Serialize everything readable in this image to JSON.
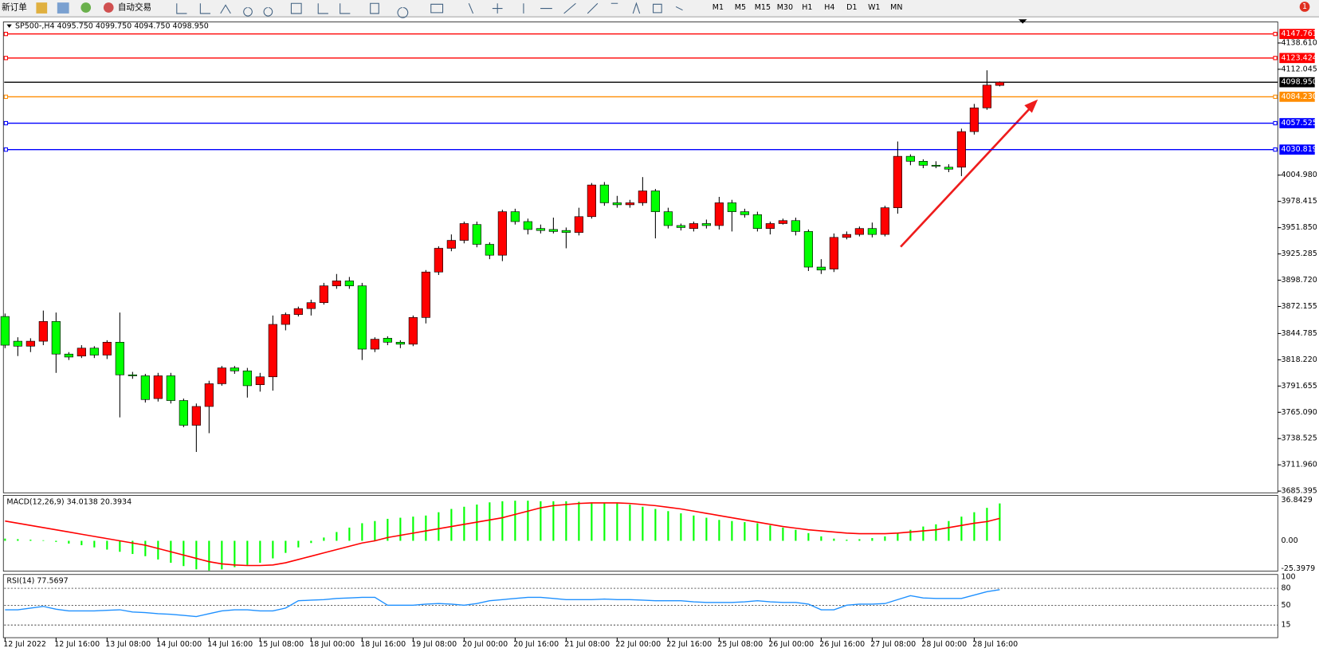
{
  "toolbar": {
    "new_order": "新订单",
    "auto_trading": "自动交易",
    "periods": [
      "M1",
      "M5",
      "M15",
      "M30",
      "H1",
      "H4",
      "D1",
      "W1",
      "MN"
    ],
    "notifications": "1"
  },
  "chart_data": [
    {
      "type": "candlestick",
      "title": "SP500-,H4  4095.750 4099.750 4094.750 4098.950",
      "categories": [
        "12 Jul 2022",
        null,
        null,
        null,
        "12 Jul 16:00",
        null,
        null,
        null,
        "13 Jul 08:00",
        null,
        null,
        null,
        "14 Jul 00:00",
        null,
        null,
        null,
        "14 Jul 16:00",
        null,
        null,
        null,
        "15 Jul 08:00",
        null,
        null,
        null,
        "18 Jul 00:00",
        null,
        null,
        null,
        "18 Jul 16:00",
        null,
        null,
        null,
        "19 Jul 08:00",
        null,
        null,
        null,
        "20 Jul 00:00",
        null,
        null,
        null,
        "20 Jul 16:00",
        null,
        null,
        null,
        "21 Jul 08:00",
        null,
        null,
        null,
        "22 Jul 00:00",
        null,
        null,
        null,
        "22 Jul 16:00",
        null,
        null,
        null,
        "25 Jul 08:00",
        null,
        null,
        null,
        "26 Jul 00:00",
        null,
        null,
        null,
        "26 Jul 16:00",
        null,
        null,
        null,
        "27 Jul 08:00",
        null,
        null,
        null,
        "28 Jul 00:00",
        null,
        null,
        null,
        "28 Jul 16:00",
        null,
        null
      ],
      "open": [
        3862,
        3837,
        3832,
        3837,
        3857,
        3824,
        3822,
        3830,
        3823,
        3836,
        3803,
        3802,
        3779,
        3802,
        3777,
        3752,
        3771,
        3794,
        3810,
        3807,
        3793,
        3801,
        3854,
        3864,
        3870,
        3876,
        3893,
        3898,
        3893,
        3829,
        3840,
        3836,
        3834,
        3861,
        3907,
        3931,
        3939,
        3955,
        3935,
        3924,
        3968,
        3958,
        3951,
        3950,
        3949,
        3947,
        3963,
        3995,
        3977,
        3975,
        3977,
        3989,
        3968,
        3954,
        3951,
        3956,
        3954,
        3977,
        3968,
        3965,
        3951,
        3956,
        3959,
        3948,
        3912,
        3910,
        3942,
        3945,
        3951,
        3945,
        3972,
        4024,
        4019,
        4015,
        4013,
        4013,
        4049,
        4073,
        4095.75
      ],
      "high": [
        3865,
        3841,
        3840,
        3868,
        3866,
        3826,
        3833,
        3832,
        3838,
        3866,
        3806,
        3804,
        3805,
        3805,
        3779,
        3774,
        3797,
        3812,
        3812,
        3810,
        3805,
        3863,
        3866,
        3872,
        3879,
        3896,
        3905,
        3902,
        3896,
        3841,
        3842,
        3838,
        3863,
        3909,
        3933,
        3945,
        3958,
        3958,
        3937,
        3970,
        3971,
        3961,
        3955,
        3962,
        3952,
        3972,
        3997,
        3998,
        3984,
        3980,
        4003,
        3991,
        3972,
        3956,
        3958,
        3960,
        3983,
        3980,
        3971,
        3968,
        3958,
        3961,
        3962,
        3950,
        3920,
        3946,
        3948,
        3953,
        3957,
        3974,
        4039,
        4026,
        4021,
        4019,
        4016,
        4052,
        4077,
        4111,
        4099.75
      ],
      "low": [
        3830,
        3822,
        3826,
        3833,
        3805,
        3818,
        3820,
        3820,
        3819,
        3760,
        3799,
        3775,
        3776,
        3774,
        3750,
        3725,
        3744,
        3792,
        3804,
        3780,
        3786,
        3787,
        3848,
        3862,
        3863,
        3874,
        3890,
        3890,
        3818,
        3826,
        3833,
        3830,
        3832,
        3855,
        3904,
        3928,
        3936,
        3932,
        3920,
        3918,
        3955,
        3945,
        3946,
        3946,
        3931,
        3944,
        3961,
        3974,
        3972,
        3972,
        3974,
        3941,
        3951,
        3949,
        3948,
        3951,
        3950,
        3948,
        3962,
        3948,
        3945,
        3955,
        3944,
        3908,
        3905,
        3907,
        3940,
        3943,
        3942,
        3943,
        3966,
        4015,
        4012,
        4012,
        4008,
        4004,
        4046,
        4071,
        4094.75
      ],
      "close": [
        3833,
        3832,
        3837,
        3857,
        3824,
        3821,
        3830,
        3823,
        3836,
        3803,
        3802,
        3778,
        3802,
        3777,
        3752,
        3771,
        3794,
        3810,
        3807,
        3792,
        3801,
        3854,
        3864,
        3870,
        3876,
        3893,
        3898,
        3893,
        3829,
        3839,
        3836,
        3834,
        3861,
        3907,
        3931,
        3939,
        3956,
        3935,
        3924,
        3968,
        3958,
        3950,
        3949,
        3948,
        3947,
        3963,
        3995,
        3977,
        3975,
        3977,
        3989,
        3968,
        3954,
        3952,
        3956,
        3954,
        3977,
        3968,
        3965,
        3951,
        3956,
        3959,
        3948,
        3912,
        3909,
        3942,
        3945,
        3951,
        3945,
        3972,
        4024,
        4019,
        4015,
        4014,
        4011,
        4049,
        4073,
        4096,
        4098.95
      ],
      "up_color": "#ff0000",
      "down_color": "#00ff00",
      "ylim": [
        3683.7,
        4159.1
      ],
      "yticks": [
        {
          "value": 4138.61,
          "label": "4138.610"
        },
        4112.045,
        {
          "value": 4004.98,
          "label": "4004.980"
        },
        3978.415,
        {
          "value": 3951.85,
          "label": "3951.850"
        },
        3925.285,
        {
          "value": 3898.72,
          "label": "3898.720"
        },
        3872.155,
        3844.785,
        {
          "value": 3818.22,
          "label": "3818.220"
        },
        3791.655,
        {
          "value": 3765.09,
          "label": "3765.090"
        },
        3738.525,
        {
          "value": 3711.96,
          "label": "3711.960"
        },
        3685.395
      ],
      "lines": [
        {
          "price": 4147.761,
          "color": "#ff0000"
        },
        {
          "price": 4123.424,
          "color": "#ff0000"
        },
        {
          "price": {
            "value": 4098.95,
            "label": "4098.950"
          },
          "color": "#000000"
        },
        {
          "price": {
            "value": 4084.23,
            "label": "4084.230"
          },
          "color": "#ff8c00"
        },
        {
          "price": 4057.525,
          "color": "#0000ff"
        },
        {
          "price": 4030.819,
          "color": "#0000ff"
        }
      ]
    },
    {
      "type": "macd",
      "title": "MACD(12,26,9) 34.0138 20.3934",
      "histogram": {
        "color": "#00ff00",
        "values": [
          2,
          1.5,
          1,
          0.5,
          -1,
          -2.5,
          -4,
          -6,
          -8,
          -10,
          -12,
          -14,
          -17,
          -20,
          -23,
          -26,
          -27,
          -26,
          -24,
          -22,
          -20,
          -16,
          -11,
          -6,
          -2,
          3,
          8,
          12,
          16,
          18,
          20,
          21,
          22,
          23,
          26,
          29,
          31,
          33,
          35,
          36,
          36.5,
          36.5,
          36,
          36,
          36,
          35.5,
          35,
          34.5,
          34,
          33,
          31,
          29,
          27,
          25,
          23,
          21,
          19,
          18,
          17,
          16,
          14,
          12,
          10,
          7,
          4,
          2,
          1,
          1.5,
          2.5,
          4,
          7,
          10,
          13,
          15,
          18,
          22,
          26,
          30,
          34.0138
        ]
      },
      "signal": {
        "color": "#ff0000",
        "values": [
          18,
          16,
          14,
          12,
          10,
          8,
          6,
          4,
          2,
          0,
          -2,
          -4,
          -7,
          -10,
          -13,
          -16,
          -19,
          -21,
          -22,
          -22.5,
          -22.5,
          -22,
          -20,
          -17,
          -14,
          -11,
          -8,
          -5,
          -2,
          0,
          3,
          5,
          7,
          9,
          11,
          13,
          15,
          17,
          19,
          21,
          24,
          27,
          30,
          32,
          33,
          34,
          34.5,
          34.5,
          34.5,
          34,
          33,
          32,
          30.5,
          29,
          27,
          25,
          23,
          21,
          19,
          17,
          15,
          13,
          11.5,
          10,
          9,
          8,
          7,
          6.5,
          6.5,
          6.5,
          7,
          8,
          9,
          10,
          12,
          14,
          16,
          17.5,
          20.3934
        ]
      },
      "ylim": [
        -27.6,
        41.4
      ],
      "yticks": [
        36.8429,
        {
          "value": 0,
          "label": "0.00"
        },
        -25.3979
      ]
    },
    {
      "type": "rsi",
      "title": "RSI(14) 77.5697",
      "color": "#1e90ff",
      "values": [
        42,
        42,
        45,
        48,
        43,
        40,
        40,
        40,
        41,
        42,
        38,
        37,
        35,
        34,
        32,
        30,
        35,
        40,
        42,
        42,
        40,
        40,
        45,
        58,
        59,
        60,
        62,
        63,
        64,
        64,
        50,
        50,
        50,
        52,
        53,
        52,
        50,
        53,
        58,
        60,
        62,
        64,
        64,
        62,
        60,
        60,
        60,
        61,
        60,
        60,
        59,
        58,
        58,
        58,
        56,
        55,
        55,
        55,
        56,
        58,
        56,
        55,
        55,
        52,
        42,
        42,
        50,
        52,
        52,
        53,
        60,
        67,
        63,
        62,
        62,
        62,
        68,
        74,
        77.5697
      ],
      "ylim": [
        0,
        100
      ],
      "yticks": [
        100,
        80,
        50,
        15
      ],
      "levels": [
        80,
        50,
        15
      ]
    }
  ]
}
